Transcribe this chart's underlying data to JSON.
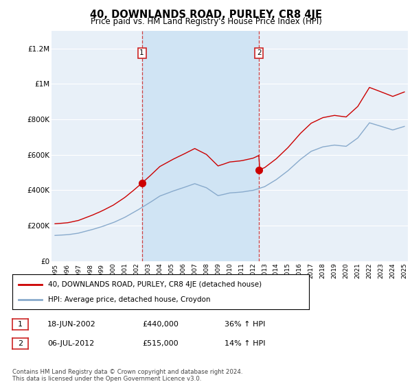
{
  "title": "40, DOWNLANDS ROAD, PURLEY, CR8 4JE",
  "subtitle": "Price paid vs. HM Land Registry's House Price Index (HPI)",
  "legend_line1": "40, DOWNLANDS ROAD, PURLEY, CR8 4JE (detached house)",
  "legend_line2": "HPI: Average price, detached house, Croydon",
  "footer": "Contains HM Land Registry data © Crown copyright and database right 2024.\nThis data is licensed under the Open Government Licence v3.0.",
  "red_color": "#cc0000",
  "blue_color": "#88aacc",
  "bg_plot": "#e8f0f8",
  "bg_shade": "#d0e4f4",
  "ylim": [
    0,
    1300000
  ],
  "yticks": [
    0,
    200000,
    400000,
    600000,
    800000,
    1000000,
    1200000
  ],
  "ytick_labels": [
    "£0",
    "£200K",
    "£400K",
    "£600K",
    "£800K",
    "£1M",
    "£1.2M"
  ],
  "purchase1_x": 2002.46,
  "purchase1_y": 440000,
  "purchase2_x": 2012.51,
  "purchase2_y": 515000,
  "vline1_x": 2002.46,
  "vline2_x": 2012.51,
  "ann1_label": "1",
  "ann1_date": "18-JUN-2002",
  "ann1_price": "£440,000",
  "ann1_hpi": "36% ↑ HPI",
  "ann2_label": "2",
  "ann2_date": "06-JUL-2012",
  "ann2_price": "£515,000",
  "ann2_hpi": "14% ↑ HPI",
  "xlim_left": 1994.7,
  "xlim_right": 2025.3
}
